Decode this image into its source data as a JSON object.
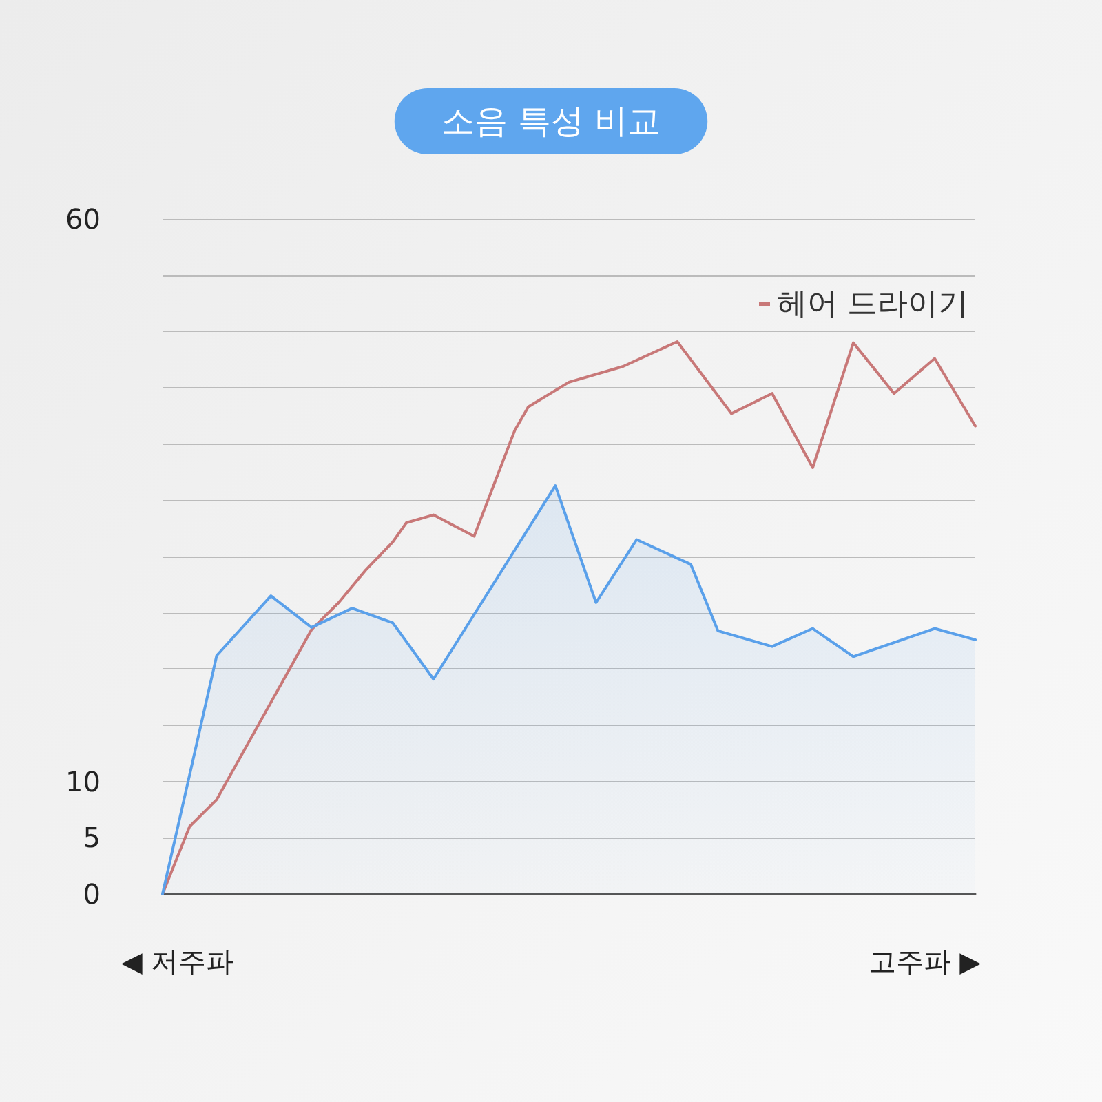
{
  "chart_data": {
    "type": "line",
    "title": "소음 특성 비교",
    "categories": [
      null,
      null,
      null,
      null,
      null,
      null,
      null,
      null,
      null,
      null,
      null,
      null,
      null,
      null,
      null,
      null,
      null,
      null,
      null,
      null,
      null,
      null,
      null,
      null,
      null,
      null,
      null,
      null,
      null,
      null,
      null,
      null,
      null,
      null,
      null,
      null,
      null,
      null,
      null,
      null,
      null,
      null,
      null,
      null,
      null,
      null,
      null,
      null,
      null,
      null,
      null,
      null,
      null,
      null,
      null,
      null,
      null,
      null,
      null,
      null,
      null
    ],
    "series": [
      {
        "name": "헤어 드라이기",
        "color": "#c87878",
        "type": "line",
        "values": [
          0,
          null,
          6,
          null,
          8.4,
          null,
          null,
          null,
          null,
          null,
          null,
          23.5,
          null,
          25.9,
          null,
          28.8,
          null,
          31.3,
          33,
          null,
          33.7,
          null,
          null,
          31.8,
          null,
          null,
          41.2,
          43.3,
          null,
          null,
          45.5,
          null,
          null,
          null,
          46.9,
          null,
          null,
          null,
          49.1,
          null,
          null,
          null,
          42.7,
          null,
          null,
          44.5,
          null,
          null,
          37.9,
          null,
          null,
          49,
          null,
          null,
          44.5,
          null,
          null,
          47.6,
          null,
          null,
          41.6
        ]
      },
      {
        "color": "#5aa0ea",
        "type": "area",
        "values": [
          0,
          null,
          null,
          null,
          21.2,
          null,
          null,
          null,
          26.5,
          null,
          null,
          23.7,
          null,
          null,
          25.4,
          null,
          null,
          24.1,
          null,
          null,
          19.1,
          null,
          null,
          null,
          null,
          null,
          null,
          null,
          null,
          36.3,
          null,
          null,
          25.9,
          null,
          null,
          31.5,
          null,
          null,
          null,
          29.3,
          null,
          23.4,
          null,
          null,
          null,
          22,
          null,
          null,
          23.6,
          null,
          null,
          21.1,
          null,
          null,
          null,
          null,
          null,
          23.6,
          null,
          null,
          22.6
        ]
      }
    ],
    "ylim": [
      0,
      60
    ],
    "yticks": [
      0,
      5,
      10,
      {
        "value": 15,
        "label": null
      },
      {
        "value": 20,
        "label": null
      },
      {
        "value": 25,
        "label": null
      },
      {
        "value": 30,
        "label": null
      },
      {
        "value": 35,
        "label": null
      },
      {
        "value": 40,
        "label": null
      },
      {
        "value": 45,
        "label": null
      },
      {
        "value": 50,
        "label": null
      },
      {
        "value": 55,
        "label": null
      },
      60
    ],
    "grid": "y",
    "legend": "top right",
    "marker": "none",
    "line_style": "solid",
    "annotations": [
      "◀ 저주파",
      "고주파 ▶"
    ]
  }
}
